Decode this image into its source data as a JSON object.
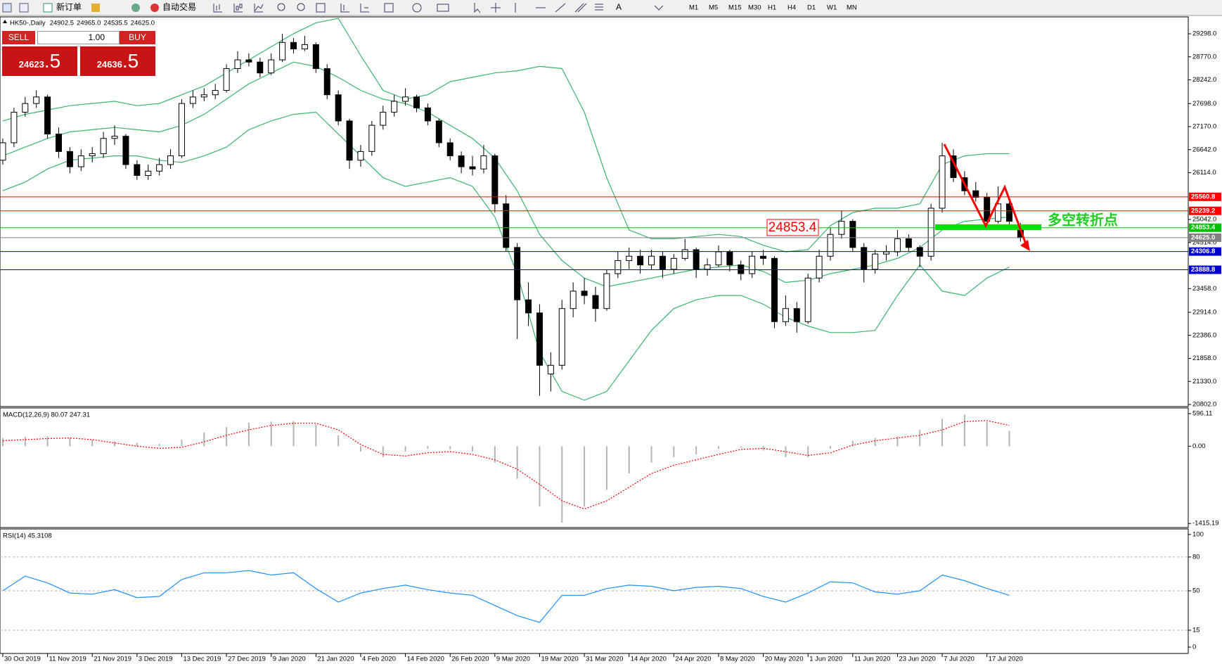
{
  "toolbar": {
    "new_order": "新订单",
    "auto_trading": "自动交易",
    "text_tool": "A",
    "timeframes": [
      "M1",
      "M5",
      "M15",
      "M30",
      "H1",
      "H4",
      "D1",
      "W1",
      "MN"
    ]
  },
  "order_panel": {
    "sell": "SELL",
    "lots": "1.00",
    "buy": "BUY",
    "bid": "24623",
    "bid_tail": ".5",
    "ask": "24636",
    "ask_tail": ".5"
  },
  "chart_data": [
    {
      "type": "candlestick",
      "title": "HK50-,Daily",
      "header_values": [
        "24902.5",
        "24965.0",
        "24535.5",
        "24625.0"
      ],
      "ohlc": [
        [
          26400,
          26900,
          26300,
          26800
        ],
        [
          26800,
          27600,
          26700,
          27500
        ],
        [
          27500,
          27850,
          27400,
          27700
        ],
        [
          27700,
          28000,
          27600,
          27850
        ],
        [
          27850,
          27900,
          26900,
          27000
        ],
        [
          27000,
          27150,
          26450,
          26600
        ],
        [
          26600,
          26700,
          26100,
          26250
        ],
        [
          26250,
          26650,
          26150,
          26500
        ],
        [
          26500,
          26700,
          26350,
          26550
        ],
        [
          26550,
          27050,
          26450,
          26900
        ],
        [
          26900,
          27200,
          26750,
          26950
        ],
        [
          26950,
          27000,
          26200,
          26300
        ],
        [
          26300,
          26400,
          25950,
          26050
        ],
        [
          26050,
          26300,
          25950,
          26150
        ],
        [
          26150,
          26450,
          26050,
          26300
        ],
        [
          26300,
          26650,
          26200,
          26500
        ],
        [
          26500,
          27800,
          26450,
          27700
        ],
        [
          27700,
          28000,
          27600,
          27850
        ],
        [
          27850,
          28050,
          27750,
          27900
        ],
        [
          27900,
          28150,
          27800,
          28000
        ],
        [
          28000,
          28600,
          27950,
          28500
        ],
        [
          28500,
          28900,
          28400,
          28700
        ],
        [
          28700,
          28850,
          28550,
          28650
        ],
        [
          28650,
          28750,
          28300,
          28400
        ],
        [
          28400,
          28850,
          28350,
          28700
        ],
        [
          28700,
          29300,
          28650,
          29100
        ],
        [
          29100,
          29200,
          28850,
          28950
        ],
        [
          28950,
          29250,
          28900,
          29050
        ],
        [
          29050,
          29100,
          28400,
          28500
        ],
        [
          28500,
          28600,
          27800,
          27900
        ],
        [
          27900,
          28000,
          27200,
          27300
        ],
        [
          27300,
          27350,
          26200,
          26400
        ],
        [
          26400,
          26750,
          26250,
          26600
        ],
        [
          26600,
          27300,
          26500,
          27200
        ],
        [
          27200,
          27650,
          27100,
          27500
        ],
        [
          27500,
          27900,
          27400,
          27750
        ],
        [
          27750,
          28050,
          27650,
          27850
        ],
        [
          27850,
          27900,
          27500,
          27600
        ],
        [
          27600,
          27700,
          27200,
          27300
        ],
        [
          27300,
          27350,
          26700,
          26800
        ],
        [
          26800,
          26900,
          26400,
          26500
        ],
        [
          26500,
          26600,
          26100,
          26250
        ],
        [
          26250,
          26500,
          26050,
          26200
        ],
        [
          26200,
          26750,
          26100,
          26500
        ],
        [
          26500,
          26550,
          25200,
          25400
        ],
        [
          25400,
          25600,
          24300,
          24400
        ],
        [
          24400,
          24500,
          22300,
          23200
        ],
        [
          23200,
          23600,
          22600,
          22900
        ],
        [
          22900,
          23100,
          21000,
          21700
        ],
        [
          21500,
          22000,
          21100,
          21700
        ],
        [
          21700,
          23200,
          21600,
          23000
        ],
        [
          23000,
          23600,
          22800,
          23400
        ],
        [
          23400,
          23700,
          23100,
          23300
        ],
        [
          23300,
          23500,
          22700,
          23000
        ],
        [
          23000,
          23900,
          22950,
          23800
        ],
        [
          23800,
          24300,
          23700,
          24100
        ],
        [
          24100,
          24400,
          23900,
          24200
        ],
        [
          24200,
          24350,
          23800,
          24000
        ],
        [
          24000,
          24350,
          23900,
          24200
        ],
        [
          24200,
          24300,
          23700,
          23900
        ],
        [
          23900,
          24250,
          23800,
          24150
        ],
        [
          24150,
          24600,
          24100,
          24350
        ],
        [
          24350,
          24400,
          23700,
          23900
        ],
        [
          23900,
          24150,
          23750,
          24000
        ],
        [
          24000,
          24450,
          23950,
          24300
        ],
        [
          24300,
          24350,
          23850,
          24000
        ],
        [
          24000,
          24100,
          23650,
          23800
        ],
        [
          23800,
          24300,
          23700,
          24200
        ],
        [
          24200,
          24350,
          24000,
          24150
        ],
        [
          24150,
          24200,
          22550,
          22700
        ],
        [
          22700,
          23300,
          22600,
          23000
        ],
        [
          23000,
          23150,
          22450,
          22700
        ],
        [
          22700,
          23800,
          22650,
          23700
        ],
        [
          23700,
          24350,
          23600,
          24200
        ],
        [
          24200,
          24850,
          24100,
          24700
        ],
        [
          24700,
          25250,
          24600,
          25000
        ],
        [
          25000,
          25050,
          24300,
          24400
        ],
        [
          24400,
          24500,
          23600,
          23900
        ],
        [
          23900,
          24350,
          23800,
          24250
        ],
        [
          24250,
          24450,
          24100,
          24300
        ],
        [
          24300,
          24800,
          24200,
          24600
        ],
        [
          24600,
          24700,
          24300,
          24400
        ],
        [
          24400,
          24450,
          23950,
          24200
        ],
        [
          24200,
          25400,
          24100,
          25300
        ],
        [
          25300,
          26800,
          25200,
          26500
        ],
        [
          26500,
          26650,
          25900,
          26000
        ],
        [
          26000,
          26150,
          25600,
          25700
        ],
        [
          25700,
          25900,
          25450,
          25550
        ],
        [
          25550,
          25650,
          24900,
          25000
        ],
        [
          25000,
          25800,
          24950,
          25400
        ],
        [
          25400,
          25500,
          24900,
          25000
        ],
        [
          24902.5,
          24965.0,
          24535.5,
          24625
        ]
      ],
      "series": [
        {
          "color": "#3cb371",
          "values": [
            27300,
            27450,
            27550,
            27650,
            27700,
            27750,
            27650,
            27700,
            27900,
            28100,
            28400,
            28700,
            29000,
            29300,
            29550,
            29650,
            28800,
            28000,
            27800,
            27900,
            28200,
            28300,
            28400,
            28450,
            28550,
            28500,
            27500,
            26000,
            24800,
            24600,
            24600,
            24650,
            24700,
            24650,
            24450,
            24300,
            24350,
            24900,
            25200,
            25300,
            25300,
            25400,
            26300,
            26500,
            26550,
            26550
          ]
        },
        {
          "color": "#3cb371",
          "values": [
            26500,
            26700,
            26900,
            27050,
            27100,
            27150,
            27100,
            27050,
            27200,
            27450,
            27800,
            28150,
            28400,
            28650,
            28550,
            28300,
            28000,
            27800,
            27700,
            27500,
            27200,
            26900,
            26450,
            25700,
            24700,
            24100,
            23700,
            23500,
            23600,
            23700,
            23800,
            23900,
            23950,
            24000,
            23850,
            23600,
            23650,
            23800,
            23900,
            24000,
            24150,
            24400,
            24800,
            25000,
            25050,
            25100
          ]
        },
        {
          "color": "#3cb371",
          "values": [
            25700,
            25900,
            26200,
            26400,
            26450,
            26500,
            26500,
            26400,
            26350,
            26500,
            26700,
            27100,
            27300,
            27450,
            27500,
            27000,
            26500,
            26000,
            25800,
            25900,
            26000,
            25800,
            25100,
            23800,
            22000,
            21100,
            20900,
            21100,
            21800,
            22500,
            23000,
            23200,
            23300,
            23300,
            23100,
            22800,
            22600,
            22450,
            22450,
            22500,
            23300,
            24000,
            23400,
            23300,
            23700,
            23950
          ]
        }
      ],
      "hlines": [
        {
          "value": 25560.8,
          "color": "#ff0000"
        },
        {
          "value": 25239.2,
          "color": "#ff0000"
        },
        {
          "value": 24853.4,
          "color": "#00c000"
        },
        {
          "value": 24625,
          "label": "24625.0",
          "color": "#808080"
        },
        {
          "value": 24306.8,
          "color": "#0000cc"
        },
        {
          "value": 23888.8,
          "color": "#0000cc"
        }
      ],
      "annotation": "多空转折点",
      "ylim": [
        20754,
        29685
      ],
      "yticks": [
        {
          "value": 29298,
          "label": "29298.0"
        },
        {
          "value": 28770,
          "label": "28770.0"
        },
        {
          "value": 28242,
          "label": "28242.0"
        },
        {
          "value": 27698,
          "label": "27698.0"
        },
        {
          "value": 27170,
          "label": "27170.0"
        },
        {
          "value": 26642,
          "label": "26642.0"
        },
        {
          "value": 26114,
          "label": "26114.0"
        },
        {
          "value": 25042,
          "label": "25042.0"
        },
        {
          "value": 24514,
          "label": "24514.0"
        },
        {
          "value": 23458,
          "label": "23458.0"
        },
        {
          "value": 22914,
          "label": "22914.0"
        },
        {
          "value": 22386,
          "label": "22386.0"
        },
        {
          "value": 21858,
          "label": "21858.0"
        },
        {
          "value": 21330,
          "label": "21330.0"
        },
        {
          "value": 20802,
          "label": "20802.0"
        }
      ]
    },
    {
      "type": "macd",
      "title": "MACD(12,26,9) 80.07 247.31",
      "series": [
        {
          "style": "histogram",
          "color": "#b4b4b4",
          "values": [
            150,
            170,
            180,
            160,
            120,
            90,
            60,
            40,
            120,
            250,
            350,
            430,
            450,
            460,
            400,
            200,
            -100,
            -200,
            -100,
            -50,
            -60,
            -100,
            -300,
            -600,
            -1100,
            -1400,
            -1100,
            -800,
            -500,
            -300,
            -200,
            -150,
            -50,
            -20,
            -80,
            -200,
            -200,
            -50,
            100,
            150,
            180,
            300,
            500,
            580,
            450,
            280
          ]
        },
        {
          "style": "dotted",
          "color": "#ff0000",
          "values": [
            100,
            120,
            140,
            150,
            120,
            60,
            0,
            -40,
            -20,
            80,
            200,
            300,
            380,
            420,
            420,
            300,
            30,
            -150,
            -180,
            -120,
            -100,
            -150,
            -250,
            -420,
            -700,
            -1000,
            -1150,
            -1000,
            -750,
            -500,
            -350,
            -250,
            -150,
            -60,
            -40,
            -100,
            -170,
            -120,
            20,
            100,
            150,
            200,
            300,
            450,
            470,
            380
          ]
        }
      ],
      "ylim": [
        -1490,
        700
      ],
      "yticks": [
        596.11,
        {
          "value": 0,
          "label": "0.00"
        },
        -1415.19
      ]
    },
    {
      "type": "line",
      "title": "RSI(14) 45.3108",
      "series": [
        {
          "color": "#1e90ff",
          "values": [
            50,
            63,
            57,
            48,
            47,
            51,
            44,
            45,
            60,
            66,
            66,
            68,
            64,
            66,
            52,
            40,
            48,
            52,
            55,
            51,
            48,
            46,
            37,
            28,
            22,
            46,
            46,
            52,
            55,
            54,
            50,
            53,
            54,
            52,
            45,
            40,
            48,
            58,
            57,
            49,
            47,
            50,
            64,
            59,
            52,
            46
          ]
        }
      ],
      "levels": [
        80,
        50,
        15
      ],
      "ylim": [
        -5.6,
        104.9
      ],
      "yticks": [
        100,
        80,
        50,
        15,
        0
      ],
      "xlim": [
        -0.25,
        106
      ],
      "xticks": [
        {
          "value": 0,
          "label": "30 Oct 2019"
        },
        {
          "value": 4,
          "label": "11 Nov 2019"
        },
        {
          "value": 8,
          "label": "21 Nov 2019"
        },
        {
          "value": 12,
          "label": "3 Dec 2019"
        },
        {
          "value": 16,
          "label": "13 Dec 2019"
        },
        {
          "value": 20,
          "label": "27 Dec 2019"
        },
        {
          "value": 24,
          "label": "9 Jan 2020"
        },
        {
          "value": 28,
          "label": "21 Jan 2020"
        },
        {
          "value": 32,
          "label": "4 Feb 2020"
        },
        {
          "value": 36,
          "label": "14 Feb 2020"
        },
        {
          "value": 40,
          "label": "26 Feb 2020"
        },
        {
          "value": 44,
          "label": "9 Mar 2020"
        },
        {
          "value": 48,
          "label": "19 Mar 2020"
        },
        {
          "value": 52,
          "label": "31 Mar 2020"
        },
        {
          "value": 56,
          "label": "14 Apr 2020"
        },
        {
          "value": 60,
          "label": "24 Apr 2020"
        },
        {
          "value": 64,
          "label": "8 May 2020"
        },
        {
          "value": 68,
          "label": "20 May 2020"
        },
        {
          "value": 72,
          "label": "1 Jun 2020"
        },
        {
          "value": 76,
          "label": "11 Jun 2020"
        },
        {
          "value": 80,
          "label": "23 Jun 2020"
        },
        {
          "value": 84,
          "label": "7 Jul 2020"
        },
        {
          "value": 88,
          "label": "17 Jul 2020"
        }
      ]
    }
  ]
}
